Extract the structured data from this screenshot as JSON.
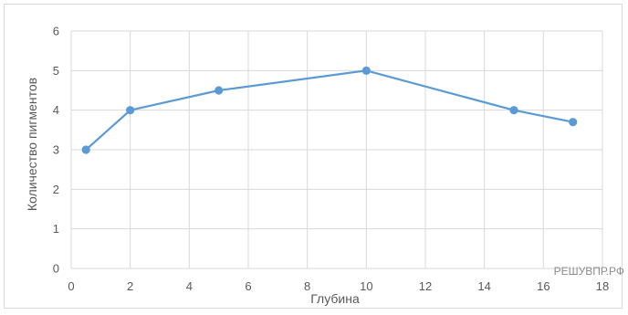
{
  "chart_data": {
    "type": "line",
    "title": "",
    "xlabel": "Глубина",
    "ylabel": "Количество пигментов",
    "xlim": [
      0,
      18
    ],
    "ylim": [
      0,
      6
    ],
    "x_ticks": [
      0,
      2,
      4,
      6,
      8,
      10,
      12,
      14,
      16,
      18
    ],
    "y_ticks": [
      0,
      1,
      2,
      3,
      4,
      5,
      6
    ],
    "grid": true,
    "legend": "none",
    "series": [
      {
        "color": "#5b9bd5",
        "points": [
          {
            "x": 0.5,
            "y": 3.0
          },
          {
            "x": 2,
            "y": 4.0
          },
          {
            "x": 5,
            "y": 4.5
          },
          {
            "x": 10,
            "y": 5.0
          },
          {
            "x": 15,
            "y": 4.0
          },
          {
            "x": 17,
            "y": 3.7
          }
        ]
      }
    ]
  },
  "watermark": "РЕШУВПР.РФ"
}
